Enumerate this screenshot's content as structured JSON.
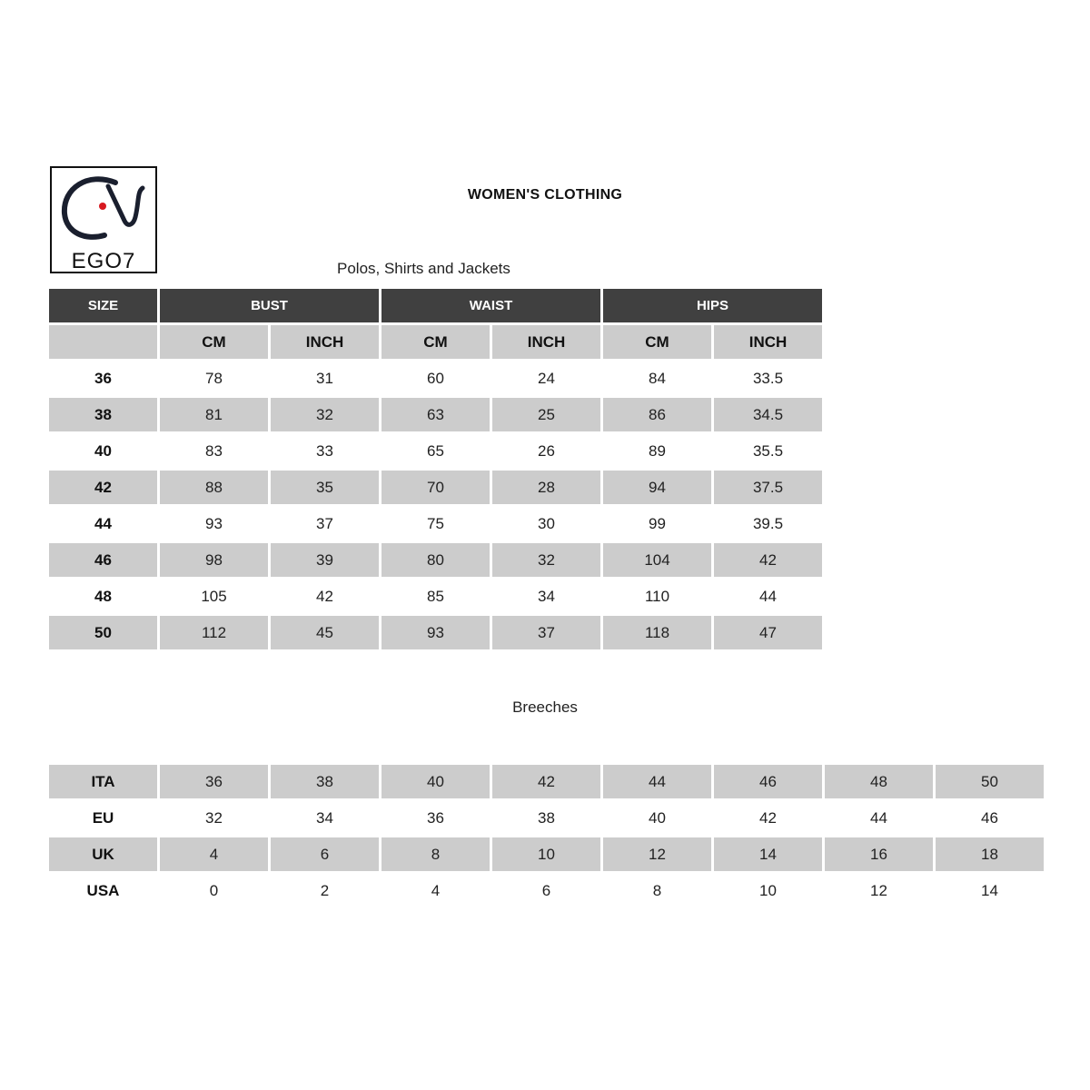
{
  "logo": {
    "text": "EGO7",
    "accent": "#d71920"
  },
  "title": "WOMEN'S CLOTHING",
  "tops": {
    "subtitle": "Polos, Shirts and Jackets",
    "headers": [
      "SIZE",
      "BUST",
      "WAIST",
      "HIPS"
    ],
    "subheaders": [
      "CM",
      "INCH",
      "CM",
      "INCH",
      "CM",
      "INCH"
    ],
    "rows": [
      [
        "36",
        "78",
        "31",
        "60",
        "24",
        "84",
        "33.5"
      ],
      [
        "38",
        "81",
        "32",
        "63",
        "25",
        "86",
        "34.5"
      ],
      [
        "40",
        "83",
        "33",
        "65",
        "26",
        "89",
        "35.5"
      ],
      [
        "42",
        "88",
        "35",
        "70",
        "28",
        "94",
        "37.5"
      ],
      [
        "44",
        "93",
        "37",
        "75",
        "30",
        "99",
        "39.5"
      ],
      [
        "46",
        "98",
        "39",
        "80",
        "32",
        "104",
        "42"
      ],
      [
        "48",
        "105",
        "42",
        "85",
        "34",
        "110",
        "44"
      ],
      [
        "50",
        "112",
        "45",
        "93",
        "37",
        "118",
        "47"
      ]
    ]
  },
  "breeches": {
    "subtitle": "Breeches",
    "rows": [
      [
        "ITA",
        "36",
        "38",
        "40",
        "42",
        "44",
        "46",
        "48",
        "50"
      ],
      [
        "EU",
        "32",
        "34",
        "36",
        "38",
        "40",
        "42",
        "44",
        "46"
      ],
      [
        "UK",
        "4",
        "6",
        "8",
        "10",
        "12",
        "14",
        "16",
        "18"
      ],
      [
        "USA",
        "0",
        "2",
        "4",
        "6",
        "8",
        "10",
        "12",
        "14"
      ]
    ]
  },
  "colors": {
    "header_bg": "#404040",
    "shade": "#cccccc"
  }
}
